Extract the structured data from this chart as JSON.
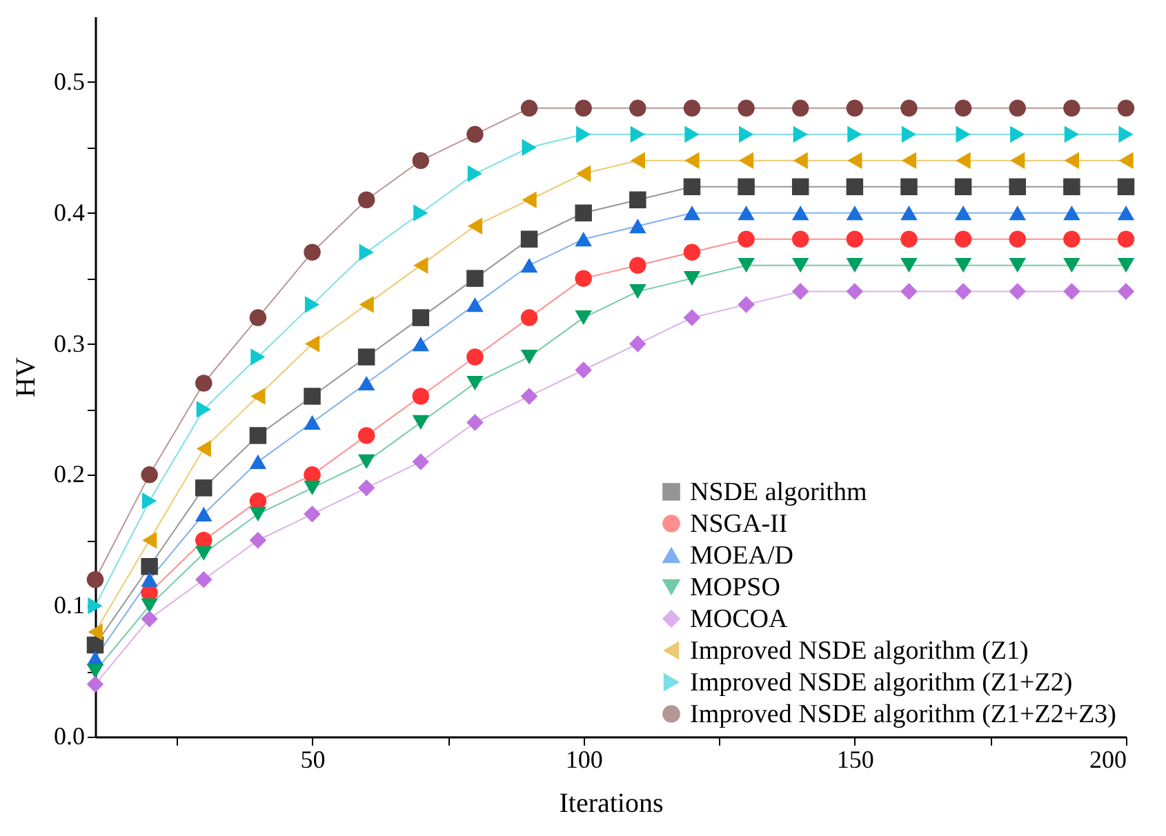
{
  "chart_data": {
    "type": "line",
    "xlabel": "Iterations",
    "ylabel": "HV",
    "x": [
      10,
      20,
      30,
      40,
      50,
      60,
      70,
      80,
      90,
      100,
      110,
      120,
      130,
      140,
      150,
      160,
      170,
      180,
      190,
      200
    ],
    "xlim": [
      10,
      200
    ],
    "xticks": [
      {
        "value": 25,
        "label": null
      },
      50,
      {
        "value": 75,
        "label": null
      },
      100,
      {
        "value": 125,
        "label": null
      },
      150,
      {
        "value": 175,
        "label": null
      },
      200
    ],
    "ylim": [
      0,
      0.55
    ],
    "yticks": [
      {
        "value": 0,
        "label": "0.0"
      },
      {
        "value": 0.05,
        "label": null
      },
      0.1,
      {
        "value": 0.15,
        "label": null
      },
      0.2,
      {
        "value": 0.25,
        "label": null
      },
      0.3,
      {
        "value": 0.35,
        "label": null
      },
      0.4,
      {
        "value": 0.45,
        "label": null
      },
      0.5
    ],
    "grid": false,
    "legend": "bottom right",
    "line_style": "solid",
    "series": [
      {
        "name": "NSDE algorithm",
        "color": "#404040",
        "marker": "square",
        "values": [
          0.07,
          0.13,
          0.19,
          0.23,
          0.26,
          0.29,
          0.32,
          0.35,
          0.38,
          0.4,
          0.41,
          0.42,
          0.42,
          0.42,
          0.42,
          0.42,
          0.42,
          0.42,
          0.42,
          0.42
        ]
      },
      {
        "name": "NSGA-II",
        "color": "#ff3333",
        "marker": "circle",
        "values": [
          null,
          0.11,
          0.15,
          0.18,
          0.2,
          0.23,
          0.26,
          0.29,
          0.32,
          0.35,
          0.36,
          0.37,
          0.38,
          0.38,
          0.38,
          0.38,
          0.38,
          0.38,
          0.38,
          0.38
        ]
      },
      {
        "name": "MOEA/D",
        "color": "#1a6fdf",
        "marker": "triangle-up",
        "values": [
          0.06,
          0.12,
          0.17,
          0.21,
          0.24,
          0.27,
          0.3,
          0.33,
          0.36,
          0.38,
          0.39,
          0.4,
          0.4,
          0.4,
          0.4,
          0.4,
          0.4,
          0.4,
          0.4,
          0.4
        ]
      },
      {
        "name": "MOPSO",
        "color": "#00a060",
        "marker": "triangle-down",
        "values": [
          0.05,
          0.1,
          0.14,
          0.17,
          0.19,
          0.21,
          0.24,
          0.27,
          0.29,
          0.32,
          0.34,
          0.35,
          0.36,
          0.36,
          0.36,
          0.36,
          0.36,
          0.36,
          0.36,
          0.36
        ]
      },
      {
        "name": "MOCOA",
        "color": "#c071e0",
        "marker": "diamond",
        "values": [
          0.04,
          0.09,
          0.12,
          0.15,
          0.17,
          0.19,
          0.21,
          0.24,
          0.26,
          0.28,
          0.3,
          0.32,
          0.33,
          0.34,
          0.34,
          0.34,
          0.34,
          0.34,
          0.34,
          0.34
        ]
      },
      {
        "name": "Improved NSDE algorithm (Z1)",
        "color": "#e0a000",
        "marker": "triangle-left",
        "values": [
          0.08,
          0.15,
          0.22,
          0.26,
          0.3,
          0.33,
          0.36,
          0.39,
          0.41,
          0.43,
          0.44,
          0.44,
          0.44,
          0.44,
          0.44,
          0.44,
          0.44,
          0.44,
          0.44,
          0.44
        ]
      },
      {
        "name": "Improved NSDE algorithm (Z1+Z2)",
        "color": "#10c8d0",
        "marker": "triangle-right",
        "values": [
          0.1,
          0.18,
          0.25,
          0.29,
          0.33,
          0.37,
          0.4,
          0.43,
          0.45,
          0.46,
          0.46,
          0.46,
          0.46,
          0.46,
          0.46,
          0.46,
          0.46,
          0.46,
          0.46,
          0.46
        ]
      },
      {
        "name": "Improved NSDE algorithm (Z1+Z2+Z3)",
        "color": "#7f4040",
        "marker": "circle",
        "values": [
          0.12,
          0.2,
          0.27,
          0.32,
          0.37,
          0.41,
          0.44,
          0.46,
          0.48,
          0.48,
          0.48,
          0.48,
          0.48,
          0.48,
          0.48,
          0.48,
          0.48,
          0.48,
          0.48,
          0.48
        ]
      }
    ]
  }
}
